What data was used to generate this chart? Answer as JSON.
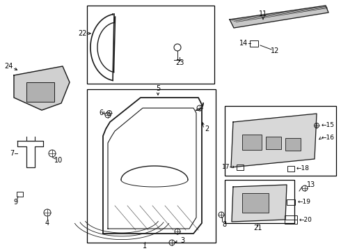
{
  "fig_width": 4.9,
  "fig_height": 3.6,
  "dpi": 100,
  "bg_color": "#ffffff",
  "lc": "#1a1a1a"
}
